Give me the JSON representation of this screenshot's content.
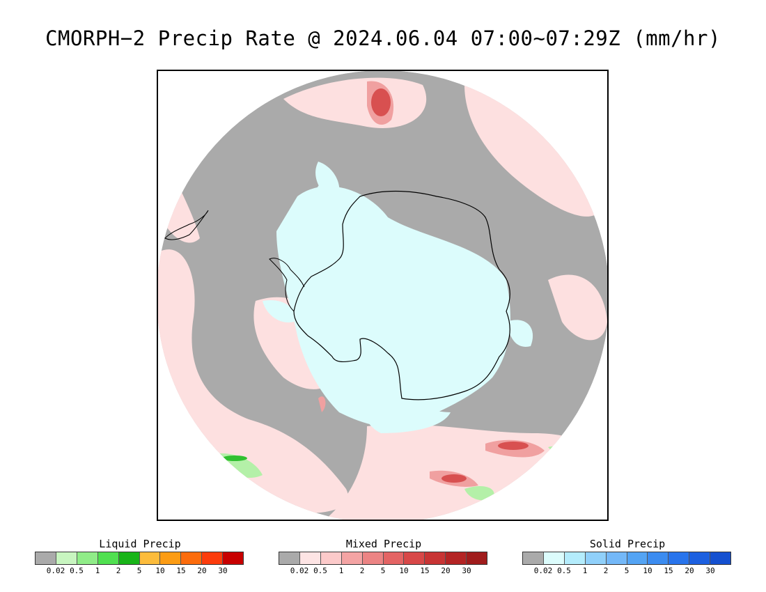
{
  "title": "CMORPH−2 Precip Rate @ 2024.06.04 07:00~07:29Z (mm/hr)",
  "map": {
    "projection": "south-polar-stereographic",
    "background_color": "#aaaaaa",
    "coastline_color": "#000000"
  },
  "legends": [
    {
      "id": "liquid",
      "title": "Liquid Precip",
      "colors": [
        "#aaaaaa",
        "#c8f5c0",
        "#90ec88",
        "#50e050",
        "#18b418",
        "#fcbc3c",
        "#fc9c14",
        "#fc6c0c",
        "#fc3c0c",
        "#c80000"
      ],
      "ticks": [
        "0.02",
        "0.5",
        "1",
        "2",
        "5",
        "10",
        "15",
        "20",
        "30"
      ]
    },
    {
      "id": "mixed",
      "title": "Mixed Precip",
      "colors": [
        "#aaaaaa",
        "#fde4e4",
        "#fccaca",
        "#f4a4a4",
        "#ec8484",
        "#e46464",
        "#d84848",
        "#c83434",
        "#b42424",
        "#a01c1c"
      ],
      "ticks": [
        "0.02",
        "0.5",
        "1",
        "2",
        "5",
        "10",
        "15",
        "20",
        "30"
      ]
    },
    {
      "id": "solid",
      "title": "Solid Precip",
      "colors": [
        "#aaaaaa",
        "#dcfcfc",
        "#b4ecfc",
        "#90d0fa",
        "#74b8f8",
        "#54a4f4",
        "#3c8cf0",
        "#2874ec",
        "#1c60e0",
        "#1450d0"
      ],
      "ticks": [
        "0.02",
        "0.5",
        "1",
        "2",
        "5",
        "10",
        "15",
        "20",
        "30"
      ]
    }
  ]
}
